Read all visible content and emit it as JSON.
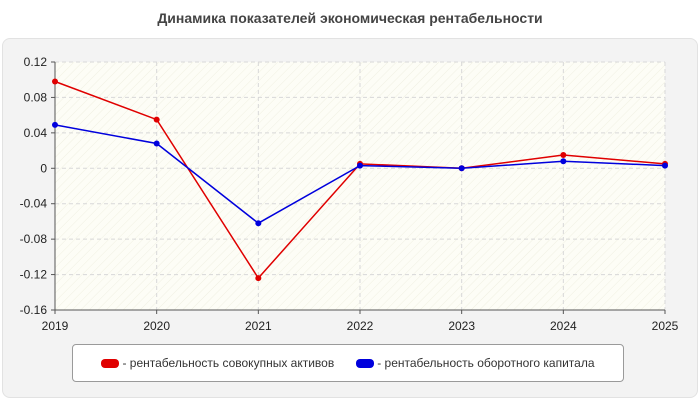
{
  "chart_data": {
    "type": "line",
    "title": "Динамика показателей экономическая рентабельности",
    "xlabel": "",
    "ylabel": "",
    "x": [
      "2019",
      "2020",
      "2021",
      "2022",
      "2023",
      "2024",
      "2025"
    ],
    "ylim": [
      -0.16,
      0.12
    ],
    "yticks": [
      0.12,
      0.08,
      0.04,
      0,
      -0.04,
      -0.08,
      -0.12,
      -0.16
    ],
    "ytick_labels": [
      "0.12",
      "0.08",
      "0.04",
      "0",
      "-0.04",
      "-0.08",
      "-0.12",
      "-0.16"
    ],
    "grid": true,
    "legend_position": "bottom",
    "series": [
      {
        "name": "- рентабельность совокупных активов",
        "color": "#e00000",
        "values": [
          0.098,
          0.055,
          -0.124,
          0.005,
          0.0,
          0.015,
          0.005
        ]
      },
      {
        "name": "- рентабельность оборотного капитала",
        "color": "#0000dd",
        "values": [
          0.049,
          0.028,
          -0.062,
          0.003,
          0.0,
          0.008,
          0.003
        ]
      }
    ]
  }
}
